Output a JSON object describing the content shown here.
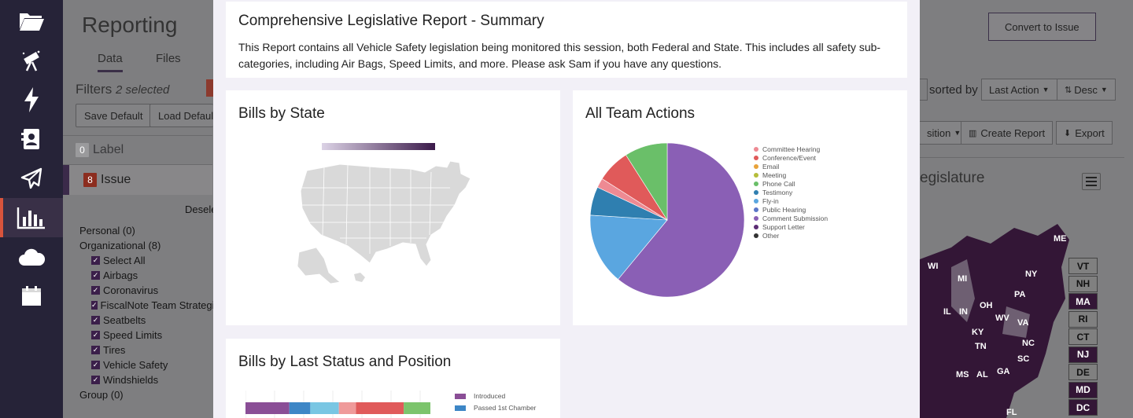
{
  "page": {
    "title": "Reporting",
    "tabs": [
      "Data",
      "Files"
    ],
    "filters": {
      "label": "Filters",
      "selected": "2 selected"
    },
    "buttons": {
      "save_default": "Save Default",
      "load_default": "Load Default",
      "convert": "Convert to Issue",
      "create_report": "Create Report",
      "export": "Export",
      "position_tail": "sition"
    },
    "sort": {
      "label": "sorted by",
      "field": "Last Action",
      "order": "Desc"
    },
    "label_row": {
      "count": "0",
      "text": "Label"
    },
    "issue_row": {
      "count": "8",
      "text": "Issue"
    },
    "deselect": "Desele",
    "tree": {
      "personal": "Personal (0)",
      "organizational": "Organizational (8)",
      "items": [
        "Select All",
        "Airbags",
        "Coronavirus",
        "FiscalNote Team Strategie",
        "Seatbelts",
        "Speed Limits",
        "Tires",
        "Vehicle Safety",
        "Windshields"
      ],
      "group": "Group (0)"
    },
    "legislature_title": "egislature",
    "map_labels": [
      "ME",
      "WI",
      "MI",
      "NY",
      "PA",
      "OH",
      "IL",
      "IN",
      "WV",
      "VA",
      "KY",
      "TN",
      "NC",
      "SC",
      "GA",
      "AL",
      "MS",
      "FL"
    ],
    "state_boxes": [
      "VT",
      "NH",
      "MA",
      "RI",
      "CT",
      "NJ",
      "DE",
      "MD",
      "DC"
    ]
  },
  "modal": {
    "summary_title": "Comprehensive Legislative Report - Summary",
    "summary_text": "This Report contains all Vehicle Safety legislation being monitored this session, both Federal and State. This includes all safety sub-categories, including Air Bags, Speed Limits, and more. Please ask Sam if you have any questions.",
    "bills_by_state_title": "Bills by State",
    "team_actions_title": "All Team Actions",
    "last_status_title": "Bills by Last Status and Position"
  },
  "chart_data": [
    {
      "type": "pie",
      "title": "All Team Actions",
      "legend_position": "right",
      "categories": [
        "Committee Hearing",
        "Conference/Event",
        "Email",
        "Meeting",
        "Phone Call",
        "Testimony",
        "Fly-in",
        "Public Hearing",
        "Comment Submission",
        "Support Letter",
        "Other"
      ],
      "colors": [
        "#ee8a93",
        "#e05a5a",
        "#e8a23a",
        "#b5bd3a",
        "#6abf69",
        "#2f7fb0",
        "#5aa6e0",
        "#5a76c8",
        "#8a5fb5",
        "#5b2c74",
        "#333333"
      ],
      "values": [
        2,
        7,
        0,
        0,
        9,
        6,
        15,
        0,
        61,
        0,
        0
      ]
    },
    {
      "type": "bar",
      "title": "Bills by Last Status and Position",
      "orientation": "horizontal",
      "stacked": true,
      "legend": [
        "Introduced",
        "Passed 1st Chamber"
      ],
      "colors": [
        "#8a4e96",
        "#3d86c6",
        "#79c6e3",
        "#ef9a9a",
        "#e05a5a",
        "#7cc46c"
      ],
      "values": [
        23,
        11,
        15,
        9,
        25,
        14
      ]
    }
  ]
}
